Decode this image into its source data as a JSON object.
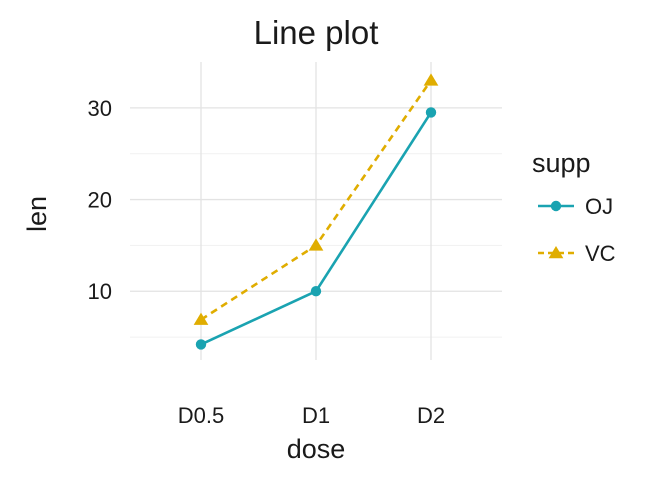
{
  "chart_data": {
    "type": "line",
    "title": "Line plot",
    "xlabel": "dose",
    "ylabel": "len",
    "categories": [
      "D0.5",
      "D1",
      "D2"
    ],
    "ylim": [
      2.5,
      35
    ],
    "yticks": [
      10,
      20,
      30
    ],
    "grid": true,
    "legend": {
      "title": "supp",
      "position": "right"
    },
    "series": [
      {
        "name": "OJ",
        "values": [
          4.2,
          10.0,
          29.5
        ],
        "color": "#1aa3b1",
        "marker": "circle",
        "dash": "solid"
      },
      {
        "name": "VC",
        "values": [
          6.9,
          15.0,
          33.0
        ],
        "color": "#e0ad00",
        "marker": "triangle",
        "dash": "dashed"
      }
    ]
  }
}
